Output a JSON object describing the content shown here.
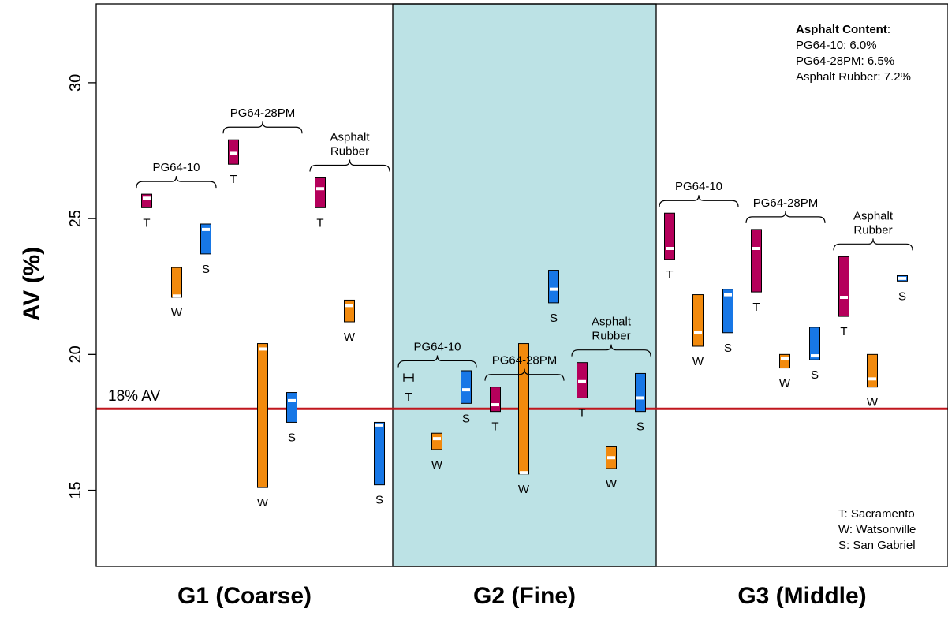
{
  "chart_data": {
    "type": "bar",
    "ylabel": "AV (%)",
    "ylim": [
      12.2,
      32.9
    ],
    "yticks": [
      15,
      20,
      25,
      30
    ],
    "reference_line": {
      "value": 18,
      "label": "18% AV",
      "color": "#c0161d"
    },
    "groups": [
      {
        "label": "G1 (Coarse)",
        "shaded": false,
        "binders": [
          {
            "label": "PG64-10",
            "bars": [
              {
                "code": "T",
                "low": 25.4,
                "high": 25.9,
                "mean": 25.75
              },
              {
                "code": "W",
                "low": 22.1,
                "high": 23.2,
                "mean": 22.15
              },
              {
                "code": "S",
                "low": 23.7,
                "high": 24.8,
                "mean": 24.6
              }
            ]
          },
          {
            "label": "PG64-28PM",
            "bars": [
              {
                "code": "T",
                "low": 27.0,
                "high": 27.9,
                "mean": 27.4
              },
              {
                "code": "W",
                "low": 15.1,
                "high": 20.4,
                "mean": 20.2
              },
              {
                "code": "S",
                "low": 17.5,
                "high": 18.6,
                "mean": 18.3
              }
            ]
          },
          {
            "label": "Asphalt Rubber",
            "bars": [
              {
                "code": "T",
                "low": 25.4,
                "high": 26.5,
                "mean": 26.1
              },
              {
                "code": "W",
                "low": 21.2,
                "high": 22.0,
                "mean": 21.8
              },
              {
                "code": "S",
                "low": 15.2,
                "high": 17.5,
                "mean": 17.4
              }
            ]
          }
        ]
      },
      {
        "label": "G2 (Fine)",
        "shaded": true,
        "binders": [
          {
            "label": "PG64-10",
            "bars": [
              {
                "code": "T",
                "low": 19.0,
                "high": 19.3,
                "mean": 19.15,
                "style": "errorbar"
              },
              {
                "code": "W",
                "low": 16.5,
                "high": 17.1,
                "mean": 16.9
              },
              {
                "code": "S",
                "low": 18.2,
                "high": 19.4,
                "mean": 18.7
              }
            ]
          },
          {
            "label": "PG64-28PM",
            "bars": [
              {
                "code": "T",
                "low": 17.9,
                "high": 18.8,
                "mean": 18.15
              },
              {
                "code": "W",
                "low": 15.6,
                "high": 20.4,
                "mean": 15.65
              },
              {
                "code": "S",
                "low": 21.9,
                "high": 23.1,
                "mean": 22.4
              }
            ]
          },
          {
            "label": "Asphalt Rubber",
            "bars": [
              {
                "code": "T",
                "low": 18.4,
                "high": 19.7,
                "mean": 19.0
              },
              {
                "code": "W",
                "low": 15.8,
                "high": 16.6,
                "mean": 16.2
              },
              {
                "code": "S",
                "low": 17.9,
                "high": 19.3,
                "mean": 18.4
              }
            ]
          }
        ]
      },
      {
        "label": "G3 (Middle)",
        "shaded": false,
        "binders": [
          {
            "label": "PG64-10",
            "bars": [
              {
                "code": "T",
                "low": 23.5,
                "high": 25.2,
                "mean": 23.9
              },
              {
                "code": "W",
                "low": 20.3,
                "high": 22.2,
                "mean": 20.8
              },
              {
                "code": "S",
                "low": 20.8,
                "high": 22.4,
                "mean": 22.2
              }
            ]
          },
          {
            "label": "PG64-28PM",
            "bars": [
              {
                "code": "T",
                "low": 22.3,
                "high": 24.6,
                "mean": 23.9
              },
              {
                "code": "W",
                "low": 19.5,
                "high": 20.0,
                "mean": 19.85
              },
              {
                "code": "S",
                "low": 19.8,
                "high": 21.0,
                "mean": 19.95
              }
            ]
          },
          {
            "label": "Asphalt Rubber",
            "bars": [
              {
                "code": "T",
                "low": 21.4,
                "high": 23.6,
                "mean": 22.1
              },
              {
                "code": "W",
                "low": 18.8,
                "high": 20.0,
                "mean": 19.1
              },
              {
                "code": "S",
                "low": 22.7,
                "high": 22.9,
                "mean": 22.8
              }
            ]
          }
        ]
      }
    ],
    "series": [
      {
        "code": "T",
        "name": "Sacramento",
        "color": "#b5005b"
      },
      {
        "code": "W",
        "name": "Watsonville",
        "color": "#f28a0d"
      },
      {
        "code": "S",
        "name": "San Gabriel",
        "color": "#1777e6"
      }
    ],
    "legend": {
      "position": "bottom-right",
      "items": [
        "T: Sacramento",
        "W: Watsonville",
        "S: San Gabriel"
      ]
    },
    "annotation": {
      "position": "top-right",
      "title": "Asphalt Content",
      "title_suffix": ":",
      "lines": [
        "PG64-10: 6.0%",
        "PG64-28PM: 6.5%",
        "Asphalt Rubber: 7.2%"
      ]
    },
    "shade_color": "#bce2e5"
  }
}
